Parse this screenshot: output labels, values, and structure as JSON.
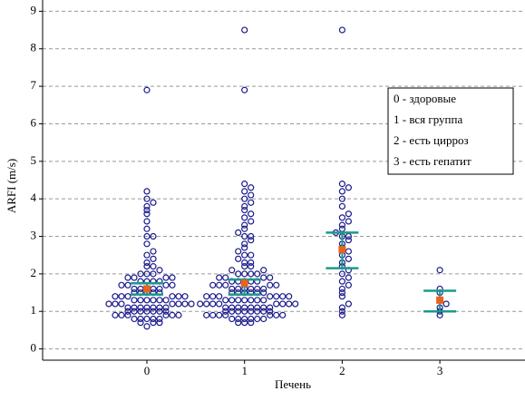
{
  "chart_data": {
    "type": "dot",
    "y_label": "ARFI (m/s)",
    "x_label": "Печень",
    "categories": [
      "0",
      "1",
      "2",
      "3"
    ],
    "groups": [
      [
        0.6,
        0.7,
        0.7,
        0.7,
        0.8,
        0.8,
        0.8,
        0.8,
        0.8,
        0.9,
        0.9,
        0.9,
        0.9,
        0.9,
        0.9,
        1.0,
        1.0,
        1.0,
        1.0,
        1.0,
        1.0,
        1.0,
        1.1,
        1.1,
        1.1,
        1.1,
        1.1,
        1.1,
        1.1,
        1.2,
        1.2,
        1.2,
        1.2,
        1.2,
        1.2,
        1.2,
        1.3,
        1.3,
        1.3,
        1.3,
        1.3,
        1.3,
        1.4,
        1.4,
        1.4,
        1.4,
        1.4,
        1.4,
        1.5,
        1.5,
        1.5,
        1.5,
        1.5,
        1.6,
        1.6,
        1.6,
        1.6,
        1.6,
        1.7,
        1.7,
        1.7,
        1.7,
        1.8,
        1.8,
        1.8,
        1.8,
        1.9,
        1.9,
        1.9,
        1.9,
        2.0,
        2.0,
        2.0,
        2.1,
        2.2,
        2.2,
        2.3,
        2.4,
        2.5,
        2.6,
        2.8,
        3.0,
        3.0,
        3.2,
        3.4,
        3.6,
        3.7,
        3.8,
        3.9,
        4.0,
        4.2,
        6.9
      ],
      [
        0.7,
        0.7,
        0.7,
        0.8,
        0.8,
        0.8,
        0.8,
        0.8,
        0.8,
        0.9,
        0.9,
        0.9,
        0.9,
        0.9,
        0.9,
        0.9,
        1.0,
        1.0,
        1.0,
        1.0,
        1.0,
        1.0,
        1.0,
        1.0,
        1.1,
        1.1,
        1.1,
        1.1,
        1.1,
        1.1,
        1.1,
        1.1,
        1.2,
        1.2,
        1.2,
        1.2,
        1.2,
        1.2,
        1.2,
        1.2,
        1.3,
        1.3,
        1.3,
        1.3,
        1.3,
        1.3,
        1.3,
        1.4,
        1.4,
        1.4,
        1.4,
        1.4,
        1.4,
        1.4,
        1.5,
        1.5,
        1.5,
        1.5,
        1.5,
        1.5,
        1.6,
        1.6,
        1.6,
        1.6,
        1.6,
        1.6,
        1.7,
        1.7,
        1.7,
        1.7,
        1.7,
        1.8,
        1.8,
        1.8,
        1.8,
        1.8,
        1.9,
        1.9,
        1.9,
        1.9,
        2.0,
        2.0,
        2.0,
        2.0,
        2.1,
        2.1,
        2.2,
        2.2,
        2.3,
        2.3,
        2.4,
        2.5,
        2.5,
        2.6,
        2.7,
        2.8,
        2.9,
        3.0,
        3.0,
        3.1,
        3.2,
        3.3,
        3.4,
        3.5,
        3.6,
        3.7,
        3.8,
        3.9,
        4.0,
        4.1,
        4.2,
        4.3,
        4.4,
        6.9,
        8.5
      ],
      [
        0.9,
        1.0,
        1.1,
        1.2,
        1.4,
        1.5,
        1.6,
        1.7,
        1.8,
        1.9,
        2.0,
        2.1,
        2.2,
        2.3,
        2.4,
        2.5,
        2.6,
        2.7,
        2.8,
        2.9,
        3.0,
        3.0,
        3.1,
        3.2,
        3.3,
        3.4,
        3.5,
        3.6,
        3.8,
        4.0,
        4.2,
        4.3,
        4.4,
        8.5
      ],
      [
        0.9,
        1.0,
        1.1,
        1.2,
        1.3,
        1.5,
        1.6,
        2.1
      ]
    ],
    "means": [
      1.6,
      1.75,
      2.65,
      1.3
    ],
    "ci_high": [
      1.75,
      1.85,
      3.1,
      1.55
    ],
    "ci_low": [
      1.45,
      1.45,
      2.15,
      1.0
    ],
    "point_color": "#1a1a8c",
    "mean_color": "#e8641e",
    "ci_color": "#1a9a8a",
    "ylim": [
      -0.3,
      9.3
    ],
    "yticks": [
      0,
      1,
      2,
      3,
      4,
      5,
      6,
      7,
      8,
      9
    ],
    "grid": true,
    "legend": [
      "0 - здоровые",
      "1 - вся группа",
      "2 - есть цирроз",
      "3 - есть гепатит"
    ]
  }
}
